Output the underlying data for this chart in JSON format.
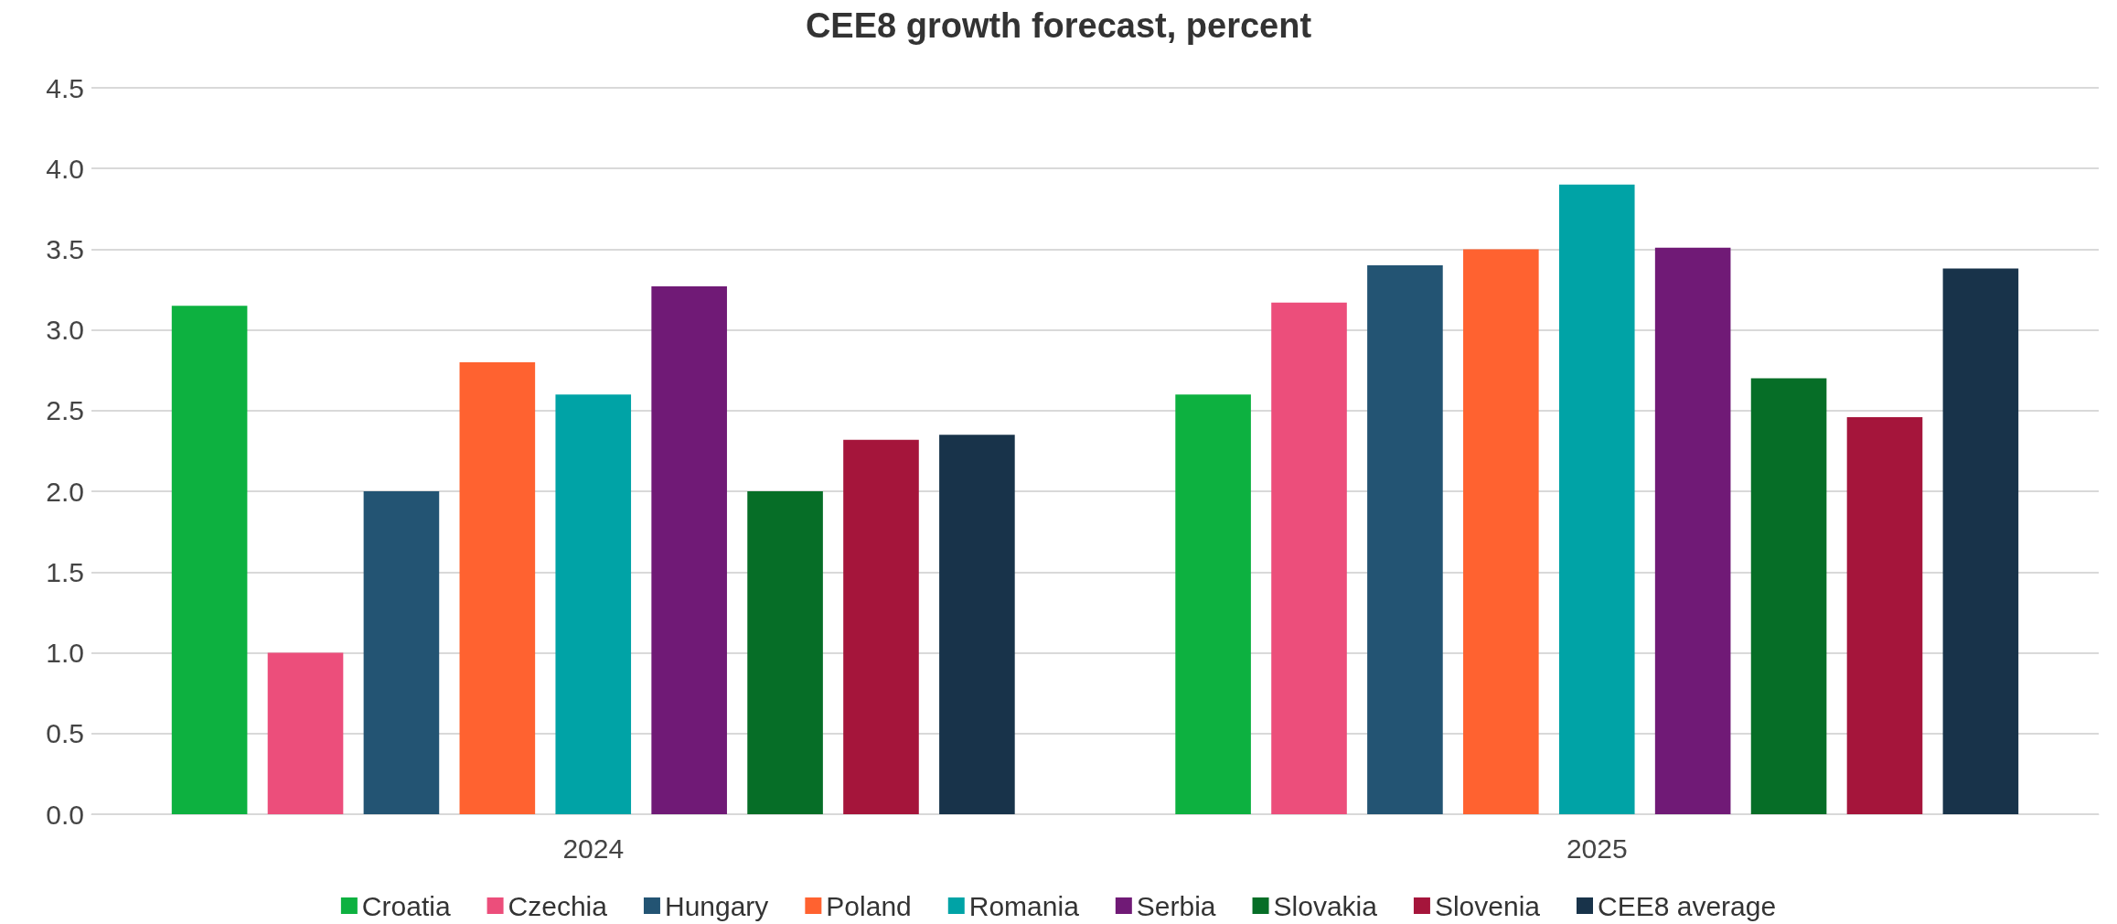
{
  "chart_data": {
    "type": "bar",
    "title": "CEE8 growth forecast, percent",
    "categories": [
      "2024",
      "2025"
    ],
    "series": [
      {
        "name": "Croatia",
        "color": "#0db140",
        "values": [
          3.15,
          2.6
        ]
      },
      {
        "name": "Czechia",
        "color": "#ec4e7b",
        "values": [
          1.0,
          3.17
        ]
      },
      {
        "name": "Hungary",
        "color": "#235473",
        "values": [
          2.0,
          3.4
        ]
      },
      {
        "name": "Poland",
        "color": "#ff6230",
        "values": [
          2.8,
          3.5
        ]
      },
      {
        "name": "Romania",
        "color": "#00a3a6",
        "values": [
          2.6,
          3.9
        ]
      },
      {
        "name": "Serbia",
        "color": "#701a76",
        "values": [
          3.27,
          3.51
        ]
      },
      {
        "name": "Slovakia",
        "color": "#066e27",
        "values": [
          2.0,
          2.7
        ]
      },
      {
        "name": "Slovenia",
        "color": "#a5153b",
        "values": [
          2.32,
          2.46
        ]
      },
      {
        "name": "CEE8 average",
        "color": "#18334a",
        "values": [
          2.35,
          3.38
        ]
      }
    ],
    "ylim": [
      0,
      4.5
    ],
    "yticks": [
      {
        "value": 0,
        "label": "0.0"
      },
      {
        "value": 0.5,
        "label": "0.5"
      },
      {
        "value": 1,
        "label": "1.0"
      },
      {
        "value": 1.5,
        "label": "1.5"
      },
      {
        "value": 2,
        "label": "2.0"
      },
      {
        "value": 2.5,
        "label": "2.5"
      },
      {
        "value": 3,
        "label": "3.0"
      },
      {
        "value": 3.5,
        "label": "3.5"
      },
      {
        "value": 4,
        "label": "4.0"
      },
      {
        "value": 4.5,
        "label": "4.5"
      }
    ],
    "grid": "y",
    "legend": "bottom"
  }
}
